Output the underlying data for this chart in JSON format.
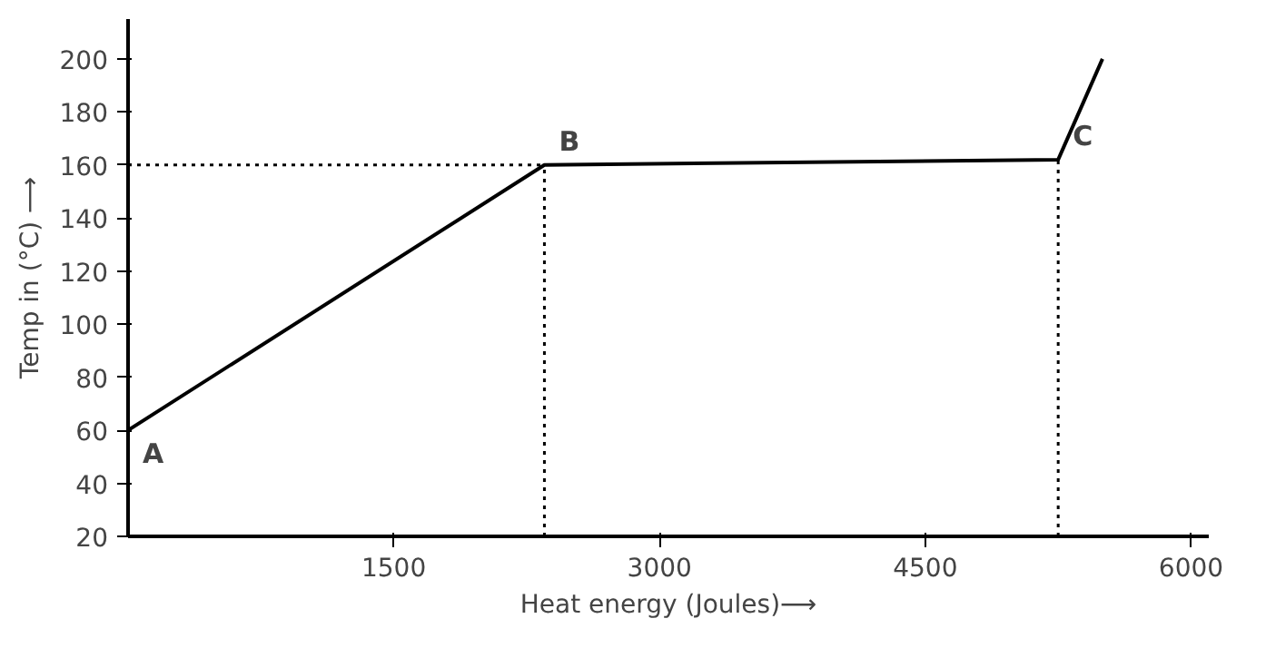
{
  "chart_data": {
    "type": "line",
    "xlabel": "Heat energy (Joules)⟶",
    "ylabel": "Temp in (°C) ⟶",
    "x": [
      0,
      2350,
      5250,
      5500
    ],
    "series": [
      {
        "color": "#000000",
        "values": [
          60,
          160,
          162,
          200
        ]
      }
    ],
    "xlim": [
      0,
      6100
    ],
    "ylim": [
      20,
      215
    ],
    "xticks": [
      1500,
      3000,
      4500,
      6000
    ],
    "yticks": [
      20,
      40,
      60,
      80,
      100,
      120,
      140,
      160,
      180,
      200
    ],
    "grid": false,
    "marker": "none",
    "line_style": "solid",
    "annotations": [
      {
        "text": "A",
        "x": 0,
        "y": 60
      },
      {
        "text": "B",
        "x": 2350,
        "y": 160
      },
      {
        "text": "C",
        "x": 5250,
        "y": 162
      }
    ],
    "ref_lines": [
      {
        "axis": "y",
        "value": 160,
        "line_style": "dotted",
        "color": "#000000"
      },
      {
        "axis": "x",
        "value": 2350,
        "line_style": "dotted",
        "color": "#000000"
      },
      {
        "axis": "x",
        "value": 5250,
        "line_style": "dotted",
        "color": "#000000"
      }
    ]
  }
}
